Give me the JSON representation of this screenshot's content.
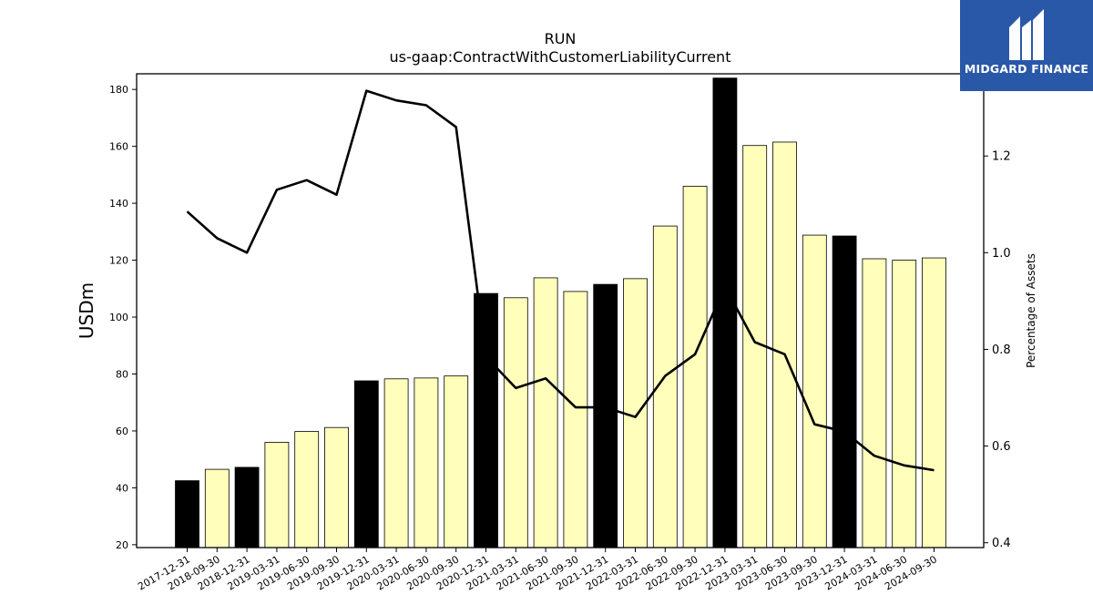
{
  "chart_data": {
    "type": "bar",
    "title": "RUN",
    "subtitle": "us-gaap:ContractWithCustomerLiabilityCurrent",
    "ylabel": "USDm",
    "y2label": "Percentage of Assets",
    "ylim": [
      19,
      185.5
    ],
    "y2lim": [
      0.39,
      1.37
    ],
    "yticks": [
      20,
      40,
      60,
      80,
      100,
      120,
      140,
      160,
      180
    ],
    "y2ticks": [
      0.4,
      0.6,
      0.8,
      1.0,
      1.2
    ],
    "y2ticklabels": [
      "0.4",
      "0.6",
      "0.8",
      "1.0",
      "1.2"
    ],
    "categories": [
      "2017-12-31",
      "2018-09-30",
      "2018-12-31",
      "2019-03-31",
      "2019-06-30",
      "2019-09-30",
      "2019-12-31",
      "2020-03-31",
      "2020-06-30",
      "2020-09-30",
      "2020-12-31",
      "2021-03-31",
      "2021-06-30",
      "2021-09-30",
      "2021-12-31",
      "2022-03-31",
      "2022-06-30",
      "2022-09-30",
      "2022-12-31",
      "2023-03-31",
      "2023-06-30",
      "2023-09-30",
      "2023-12-31",
      "2024-03-31",
      "2024-06-30",
      "2024-09-30"
    ],
    "series": [
      {
        "kind": "bar",
        "axis": "left",
        "values": [
          42.5,
          46.5,
          47.2,
          56.0,
          59.8,
          61.2,
          77.6,
          78.3,
          78.6,
          79.3,
          108.3,
          106.8,
          113.8,
          109.0,
          111.5,
          113.5,
          132.0,
          146.0,
          184.0,
          160.3,
          161.5,
          128.8,
          128.5,
          120.5,
          120.0,
          120.8
        ],
        "year_end": [
          true,
          false,
          true,
          false,
          false,
          false,
          true,
          false,
          false,
          false,
          true,
          false,
          false,
          false,
          true,
          false,
          false,
          false,
          true,
          false,
          false,
          false,
          true,
          false,
          false,
          false
        ]
      },
      {
        "kind": "line",
        "axis": "right",
        "values": [
          1.085,
          1.03,
          1.0,
          1.13,
          1.15,
          1.12,
          1.335,
          1.315,
          1.305,
          1.26,
          0.785,
          0.72,
          0.74,
          0.68,
          0.68,
          0.66,
          0.745,
          0.79,
          0.93,
          0.815,
          0.79,
          0.645,
          0.63,
          0.58,
          0.56,
          0.55
        ]
      }
    ],
    "colors": {
      "year_end_bar": "#000000",
      "quarter_bar": "#ffffbb",
      "bar_edge": "#000000",
      "line": "#000000"
    },
    "grid": false
  },
  "logo": {
    "text": "MIDGARD FINANCE",
    "color": "#2a58a8"
  }
}
